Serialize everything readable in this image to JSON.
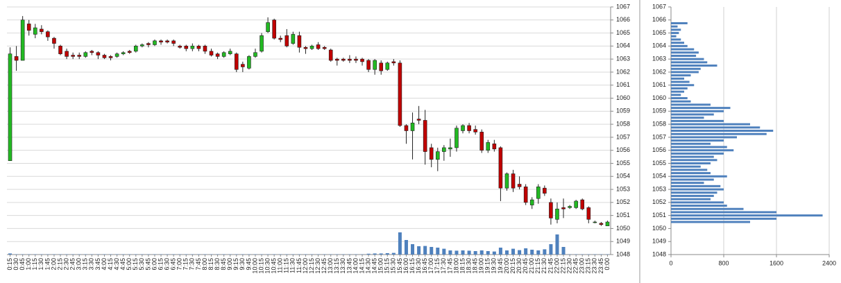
{
  "chart_data": [
    {
      "type": "candlestick",
      "categories": [
        "0:15",
        "0:30",
        "0:45",
        "1:00",
        "1:15",
        "1:30",
        "1:45",
        "2:00",
        "2:15",
        "2:30",
        "2:45",
        "3:00",
        "3:15",
        "3:30",
        "3:45",
        "4:00",
        "4:15",
        "4:30",
        "4:45",
        "5:00",
        "5:15",
        "5:30",
        "5:45",
        "6:00",
        "6:15",
        "6:30",
        "6:45",
        "7:00",
        "7:15",
        "7:30",
        "7:45",
        "8:00",
        "8:15",
        "8:30",
        "8:45",
        "9:00",
        "9:15",
        "9:30",
        "9:45",
        "10:00",
        "10:15",
        "10:30",
        "10:45",
        "11:00",
        "11:15",
        "11:30",
        "11:45",
        "12:00",
        "12:15",
        "12:30",
        "12:45",
        "13:00",
        "13:15",
        "13:30",
        "13:45",
        "14:00",
        "14:15",
        "14:30",
        "14:45",
        "15:00",
        "15:15",
        "15:30",
        "15:45",
        "16:00",
        "16:15",
        "16:30",
        "16:45",
        "17:00",
        "17:15",
        "17:30",
        "17:45",
        "18:00",
        "18:15",
        "18:30",
        "18:45",
        "19:00",
        "19:15",
        "19:30",
        "19:45",
        "20:00",
        "20:15",
        "20:30",
        "20:45",
        "21:00",
        "21:15",
        "21:30",
        "21:45",
        "22:00",
        "22:15",
        "22:30",
        "22:45",
        "23:00",
        "23:15",
        "23:30",
        "23:45",
        "0:00"
      ],
      "open": [
        1055.2,
        1063.2,
        1062.9,
        1065.7,
        1064.9,
        1065.3,
        1065.1,
        1064.6,
        1064.0,
        1063.6,
        1063.3,
        1063.3,
        1063.2,
        1063.6,
        1063.5,
        1063.3,
        1063.2,
        1063.2,
        1063.4,
        1063.6,
        1063.6,
        1064.0,
        1064.2,
        1064.1,
        1064.4,
        1064.4,
        1064.4,
        1064.0,
        1064.0,
        1063.8,
        1064.0,
        1064.0,
        1063.6,
        1063.4,
        1063.2,
        1063.4,
        1063.4,
        1062.6,
        1062.3,
        1063.2,
        1063.6,
        1065.1,
        1066.0,
        1064.6,
        1064.8,
        1064.2,
        1064.8,
        1063.9,
        1063.8,
        1064.1,
        1063.9,
        1063.7,
        1063.0,
        1063.0,
        1063.0,
        1063.0,
        1063.0,
        1062.9,
        1062.2,
        1062.7,
        1062.2,
        1062.8,
        1062.7,
        1057.9,
        1057.5,
        1058.4,
        1058.3,
        1056.2,
        1055.3,
        1055.9,
        1056.1,
        1056.2,
        1057.5,
        1057.9,
        1057.6,
        1057.4,
        1056.0,
        1056.5,
        1056.2,
        1053.1,
        1054.2,
        1053.4,
        1053.2,
        1051.8,
        1052.3,
        1053.1,
        1052.0,
        1050.7,
        1051.6,
        1051.6,
        1051.6,
        1052.2,
        1051.6,
        1050.5,
        1050.4,
        1050.2
      ],
      "high": [
        1063.9,
        1064.0,
        1066.3,
        1066.0,
        1065.7,
        1065.6,
        1065.2,
        1064.7,
        1064.1,
        1063.8,
        1063.5,
        1063.5,
        1063.6,
        1063.7,
        1063.6,
        1063.4,
        1063.3,
        1063.5,
        1063.6,
        1063.7,
        1064.1,
        1064.2,
        1064.3,
        1064.5,
        1064.5,
        1064.5,
        1064.5,
        1064.1,
        1064.1,
        1064.2,
        1064.1,
        1064.1,
        1063.8,
        1063.5,
        1063.6,
        1063.8,
        1063.5,
        1062.8,
        1063.3,
        1063.8,
        1065.0,
        1066.2,
        1066.1,
        1064.8,
        1065.3,
        1065.1,
        1065.1,
        1064.0,
        1064.1,
        1064.3,
        1064.0,
        1063.8,
        1063.1,
        1063.1,
        1063.3,
        1063.2,
        1063.1,
        1063.0,
        1063.0,
        1062.9,
        1062.8,
        1063.0,
        1062.9,
        1058.0,
        1058.9,
        1059.4,
        1059.1,
        1056.5,
        1056.2,
        1056.4,
        1056.9,
        1057.9,
        1058.0,
        1058.1,
        1057.9,
        1057.6,
        1056.8,
        1056.8,
        1056.3,
        1054.3,
        1054.5,
        1054.0,
        1053.4,
        1052.4,
        1053.4,
        1053.3,
        1052.3,
        1052.0,
        1052.3,
        1051.8,
        1052.2,
        1052.3,
        1051.7,
        1050.6,
        1050.5,
        1050.6
      ],
      "low": [
        1055.2,
        1062.1,
        1062.9,
        1064.8,
        1064.6,
        1064.9,
        1064.4,
        1063.8,
        1063.3,
        1063.0,
        1063.0,
        1063.0,
        1063.1,
        1063.3,
        1063.0,
        1063.0,
        1062.9,
        1063.1,
        1063.3,
        1063.4,
        1063.5,
        1063.9,
        1063.9,
        1064.0,
        1064.1,
        1064.2,
        1064.0,
        1063.8,
        1063.6,
        1063.6,
        1063.6,
        1063.4,
        1063.2,
        1063.0,
        1063.1,
        1063.3,
        1062.0,
        1062.0,
        1062.2,
        1063.1,
        1063.5,
        1065.0,
        1064.5,
        1064.3,
        1063.9,
        1064.1,
        1063.5,
        1063.4,
        1063.7,
        1063.7,
        1063.7,
        1062.8,
        1062.5,
        1062.8,
        1062.7,
        1062.7,
        1062.5,
        1062.0,
        1061.8,
        1061.8,
        1062.1,
        1062.5,
        1057.8,
        1056.5,
        1055.3,
        1058.0,
        1054.9,
        1054.7,
        1054.4,
        1055.2,
        1055.5,
        1055.9,
        1057.3,
        1057.3,
        1057.2,
        1055.8,
        1055.8,
        1055.9,
        1052.1,
        1052.9,
        1052.8,
        1053.0,
        1051.8,
        1051.5,
        1051.9,
        1052.5,
        1050.3,
        1050.4,
        1050.8,
        1051.5,
        1051.5,
        1051.4,
        1050.4,
        1050.4,
        1050.2,
        1050.2
      ],
      "close": [
        1063.4,
        1062.9,
        1066.0,
        1065.2,
        1065.4,
        1065.1,
        1064.7,
        1064.2,
        1063.4,
        1063.2,
        1063.2,
        1063.2,
        1063.5,
        1063.5,
        1063.3,
        1063.1,
        1063.1,
        1063.4,
        1063.5,
        1063.5,
        1064.0,
        1064.1,
        1064.1,
        1064.4,
        1064.3,
        1064.3,
        1064.2,
        1063.9,
        1063.8,
        1064.0,
        1063.8,
        1063.6,
        1063.3,
        1063.2,
        1063.5,
        1063.6,
        1062.2,
        1062.4,
        1063.2,
        1063.5,
        1064.8,
        1065.8,
        1064.6,
        1064.5,
        1064.0,
        1064.9,
        1063.9,
        1063.8,
        1064.0,
        1063.8,
        1063.8,
        1062.9,
        1062.9,
        1062.9,
        1062.9,
        1062.9,
        1062.8,
        1062.2,
        1062.9,
        1062.1,
        1062.7,
        1062.7,
        1057.9,
        1057.5,
        1058.1,
        1058.3,
        1055.9,
        1055.3,
        1055.9,
        1056.2,
        1056.2,
        1057.7,
        1057.9,
        1057.5,
        1057.4,
        1056.0,
        1056.6,
        1056.1,
        1053.1,
        1054.2,
        1053.1,
        1053.2,
        1052.0,
        1052.2,
        1053.2,
        1052.7,
        1050.8,
        1051.5,
        1051.5,
        1051.7,
        1052.1,
        1051.5,
        1050.7,
        1050.5,
        1050.3,
        1050.5
      ],
      "volume": [
        80,
        20,
        20,
        20,
        20,
        20,
        20,
        20,
        20,
        20,
        20,
        20,
        20,
        20,
        20,
        20,
        20,
        20,
        20,
        20,
        20,
        20,
        20,
        20,
        20,
        20,
        20,
        20,
        20,
        20,
        20,
        20,
        20,
        20,
        20,
        20,
        20,
        20,
        20,
        20,
        20,
        20,
        20,
        20,
        20,
        20,
        20,
        20,
        20,
        20,
        20,
        20,
        20,
        20,
        20,
        20,
        20,
        60,
        80,
        80,
        100,
        120,
        1600,
        1050,
        750,
        600,
        620,
        550,
        500,
        420,
        300,
        280,
        300,
        280,
        250,
        300,
        250,
        220,
        500,
        300,
        420,
        320,
        450,
        350,
        300,
        380,
        750,
        1450,
        550,
        20,
        20,
        20,
        20,
        20,
        20,
        20
      ],
      "ylim": [
        1048,
        1067
      ],
      "yticks": [
        1048,
        1049,
        1050,
        1051,
        1052,
        1053,
        1054,
        1055,
        1056,
        1057,
        1058,
        1059,
        1060,
        1061,
        1062,
        1063,
        1064,
        1065,
        1066,
        1067
      ],
      "grid": true,
      "up_color": "#22b922",
      "down_color": "#c00000",
      "volume_color": "#4f81bd"
    },
    {
      "type": "barh",
      "y": [
        1050.5,
        1050.75,
        1051,
        1051.25,
        1051.5,
        1051.75,
        1052,
        1052.25,
        1052.5,
        1052.75,
        1053,
        1053.25,
        1053.5,
        1053.75,
        1054,
        1054.25,
        1054.5,
        1054.75,
        1055,
        1055.25,
        1055.5,
        1055.75,
        1056,
        1056.25,
        1056.5,
        1056.75,
        1057,
        1057.25,
        1057.5,
        1057.75,
        1058,
        1058.25,
        1058.5,
        1058.75,
        1059,
        1059.25,
        1059.5,
        1059.75,
        1060,
        1060.25,
        1060.5,
        1060.75,
        1061,
        1061.25,
        1061.5,
        1061.75,
        1062,
        1062.25,
        1062.5,
        1062.75,
        1063,
        1063.25,
        1063.5,
        1063.75,
        1064,
        1064.25,
        1064.5,
        1064.75,
        1065,
        1065.25,
        1065.5,
        1065.75
      ],
      "values": [
        1200,
        1600,
        2300,
        1600,
        1100,
        850,
        800,
        600,
        650,
        700,
        800,
        750,
        500,
        650,
        850,
        600,
        550,
        450,
        600,
        700,
        650,
        800,
        950,
        850,
        600,
        800,
        1000,
        1450,
        1550,
        1350,
        1200,
        800,
        500,
        650,
        800,
        900,
        600,
        300,
        250,
        150,
        200,
        250,
        350,
        280,
        200,
        300,
        420,
        450,
        700,
        550,
        500,
        380,
        420,
        350,
        250,
        200,
        150,
        80,
        120,
        150,
        100,
        250
      ],
      "xlim": [
        0,
        2400
      ],
      "xticks": [
        0,
        800,
        1600,
        2400
      ],
      "ylim": [
        1048,
        1067
      ],
      "yticks": [
        1048,
        1049,
        1050,
        1051,
        1052,
        1053,
        1054,
        1055,
        1056,
        1057,
        1058,
        1059,
        1060,
        1061,
        1062,
        1063,
        1064,
        1065,
        1066,
        1067
      ],
      "grid": true,
      "color": "#4f81bd"
    }
  ]
}
